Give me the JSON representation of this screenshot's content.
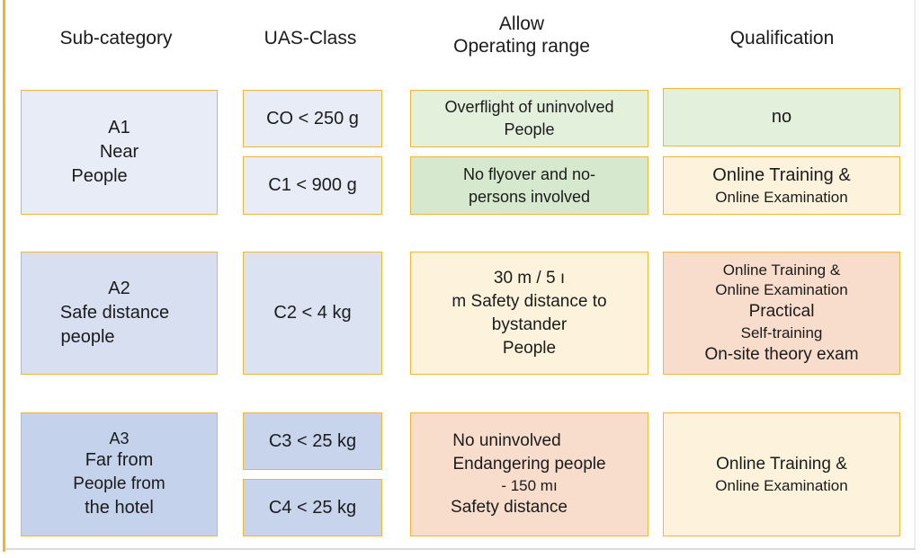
{
  "headers": {
    "subcategory": "Sub-category",
    "uas_class": "UAS-Class",
    "operating_range": [
      "Allow",
      "Operating range"
    ],
    "qualification": "Qualification"
  },
  "rows": [
    {
      "subcategory": [
        "A1",
        "Near",
        "People"
      ],
      "classes": [
        "CO < 250 g",
        "C1 < 900 g"
      ],
      "ranges": [
        [
          "Overflight of uninvolved",
          "People"
        ],
        [
          "No flyover and no-",
          "persons involved"
        ]
      ],
      "qualifications": [
        [
          "no"
        ],
        [
          "Online Training &",
          "Online Examination"
        ]
      ]
    },
    {
      "subcategory": [
        "A2",
        "Safe distance",
        "people"
      ],
      "classes": [
        "C2 < 4 kg"
      ],
      "ranges": [
        [
          "30 m / 5   ı",
          "m Safety distance to",
          "bystander",
          "People"
        ]
      ],
      "qualifications": [
        [
          "Online Training &",
          "Online Examination",
          "Practical",
          "Self-training",
          "On-site theory exam"
        ]
      ]
    },
    {
      "subcategory": [
        "A3",
        "Far from",
        "People from",
        "the hotel"
      ],
      "classes": [
        "C3 < 25 kg",
        "C4 < 25 kg"
      ],
      "ranges": [
        [
          "No uninvolved",
          "Endangering people",
          "- 150 mı",
          "Safety distance"
        ]
      ],
      "qualifications": [
        [
          "Online Training &",
          "Online Examination"
        ]
      ]
    }
  ],
  "colors": {
    "border": "#f2b53a",
    "a1_sub": "#e7ecf6",
    "a2_sub": "#d7dff0",
    "a3_sub": "#c5d2eb",
    "green": "#e3f0dc",
    "green_dark": "#d6e8cd",
    "cream": "#fdf3dc",
    "peach": "#f8dccc",
    "class_light": "#e8ecf6",
    "class_mid": "#dbe2f1",
    "class_dark": "#c8d4ec"
  }
}
